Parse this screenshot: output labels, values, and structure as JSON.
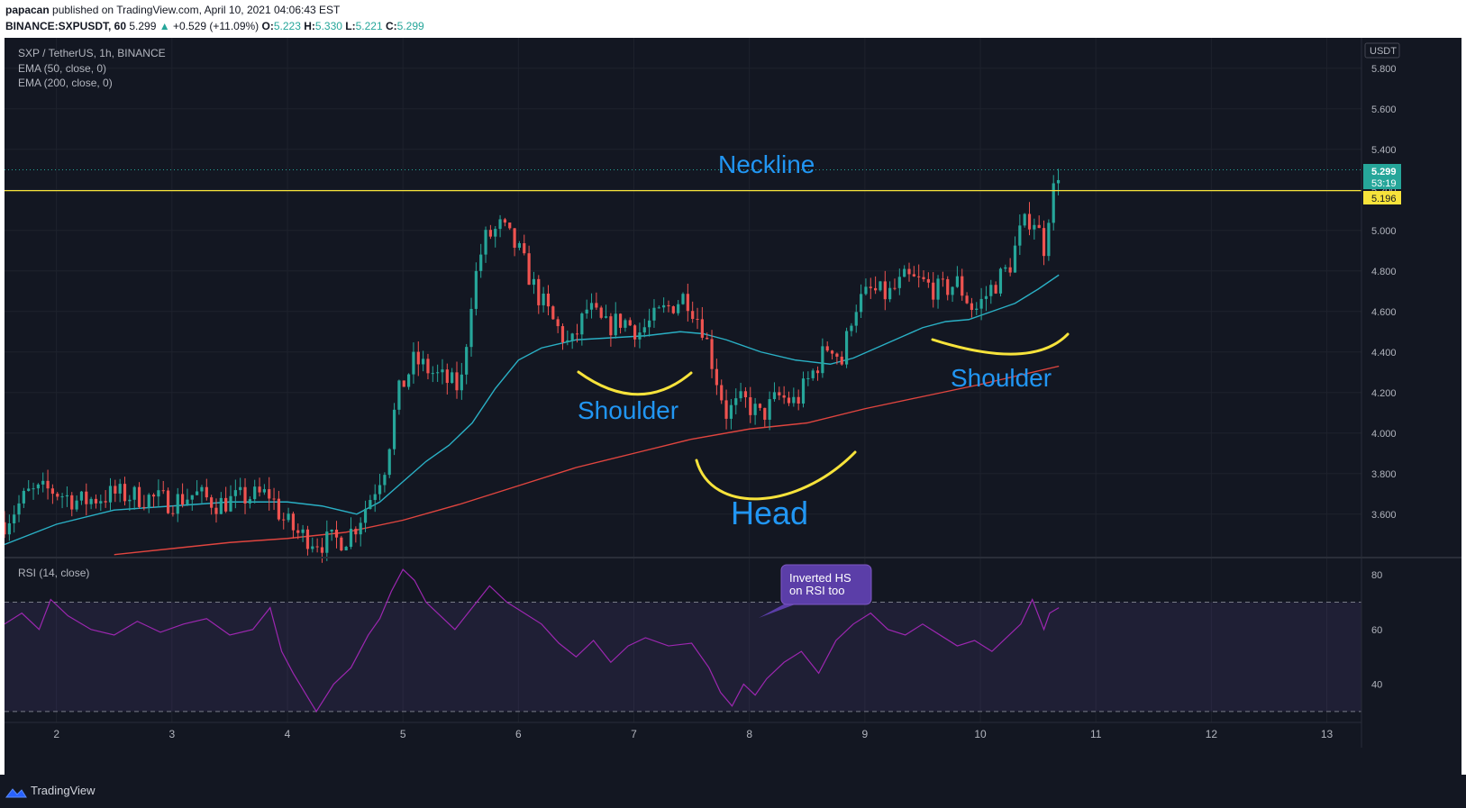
{
  "header": {
    "author": "papacan",
    "published": "published on TradingView.com, April 10, 2021 04:06:43 EST",
    "symbol": "BINANCE:SXPUSDT, 60",
    "last": "5.299",
    "change": "+0.529 (+11.09%)",
    "o_label": "O:",
    "o": "5.223",
    "h_label": "H:",
    "h": "5.330",
    "l_label": "L:",
    "l": "5.221",
    "c_label": "C:",
    "c": "5.299"
  },
  "legend": {
    "title": "SXP / TetherUS, 1h, BINANCE",
    "ema50": "EMA (50, close, 0)",
    "ema200": "EMA (200, close, 0)",
    "rsi": "RSI (14, close)"
  },
  "axis": {
    "currency": "USDT"
  },
  "price_tags": {
    "last": "5.299",
    "countdown": "53:19",
    "line": "5.196"
  },
  "annotations": {
    "neckline": "Neckline",
    "left_shoulder": "Shoulder",
    "head": "Head",
    "right_shoulder": "Shoulder",
    "rsi_note_line1": "Inverted HS",
    "rsi_note_line2": "on RSI too"
  },
  "footer": {
    "brand": "TradingView"
  },
  "colors": {
    "background": "#131722",
    "grid": "#1e222d",
    "up": "#26a69a",
    "down": "#ef5350",
    "ema50": "#2ab0c5",
    "ema200": "#e0453f",
    "neckline": "#f7e33b",
    "annotation": "#2196f3",
    "rsi": "#9c27b0",
    "rsi_band": "#7e57c2"
  },
  "chart_data": [
    {
      "type": "candlestick",
      "title": "SXP / TetherUS, 1h, BINANCE",
      "x_ticks": [
        "2",
        "3",
        "4",
        "5",
        "6",
        "7",
        "8",
        "9",
        "10",
        "11",
        "12",
        "13"
      ],
      "x_range": [
        1.55,
        13.3
      ],
      "y_ticks": [
        3.6,
        3.8,
        4.0,
        4.2,
        4.4,
        4.6,
        4.8,
        5.0,
        5.2,
        5.4,
        5.6,
        5.8
      ],
      "y_tick_labels": [
        "3.600",
        "3.800",
        "4.000",
        "4.200",
        "4.400",
        "4.600",
        "4.800",
        "5.000",
        "5.200",
        "5.400",
        "5.600",
        "5.800"
      ],
      "ylim": [
        3.39,
        5.95
      ],
      "neckline": 5.196,
      "last_price": 5.299,
      "price_path": [
        [
          1.55,
          3.56
        ],
        [
          1.75,
          3.7
        ],
        [
          1.95,
          3.72
        ],
        [
          2.2,
          3.66
        ],
        [
          2.5,
          3.7
        ],
        [
          2.8,
          3.68
        ],
        [
          3.0,
          3.66
        ],
        [
          3.2,
          3.7
        ],
        [
          3.4,
          3.65
        ],
        [
          3.6,
          3.68
        ],
        [
          3.85,
          3.7
        ],
        [
          3.95,
          3.58
        ],
        [
          4.1,
          3.5
        ],
        [
          4.3,
          3.46
        ],
        [
          4.5,
          3.48
        ],
        [
          4.6,
          3.55
        ],
        [
          4.75,
          3.72
        ],
        [
          4.85,
          3.85
        ],
        [
          4.95,
          4.18
        ],
        [
          5.1,
          4.36
        ],
        [
          5.3,
          4.28
        ],
        [
          5.5,
          4.22
        ],
        [
          5.6,
          4.7
        ],
        [
          5.7,
          4.95
        ],
        [
          5.85,
          5.02
        ],
        [
          6.0,
          4.9
        ],
        [
          6.15,
          4.7
        ],
        [
          6.3,
          4.55
        ],
        [
          6.45,
          4.42
        ],
        [
          6.6,
          4.62
        ],
        [
          6.75,
          4.52
        ],
        [
          6.9,
          4.56
        ],
        [
          7.05,
          4.5
        ],
        [
          7.25,
          4.6
        ],
        [
          7.45,
          4.68
        ],
        [
          7.6,
          4.52
        ],
        [
          7.7,
          4.3
        ],
        [
          7.8,
          4.1
        ],
        [
          7.95,
          4.16
        ],
        [
          8.1,
          4.08
        ],
        [
          8.25,
          4.18
        ],
        [
          8.4,
          4.15
        ],
        [
          8.55,
          4.3
        ],
        [
          8.7,
          4.45
        ],
        [
          8.8,
          4.35
        ],
        [
          8.9,
          4.62
        ],
        [
          9.05,
          4.7
        ],
        [
          9.2,
          4.68
        ],
        [
          9.35,
          4.76
        ],
        [
          9.5,
          4.74
        ],
        [
          9.65,
          4.7
        ],
        [
          9.8,
          4.74
        ],
        [
          9.95,
          4.6
        ],
        [
          10.1,
          4.72
        ],
        [
          10.25,
          4.82
        ],
        [
          10.35,
          5.0
        ],
        [
          10.45,
          5.08
        ],
        [
          10.55,
          4.92
        ],
        [
          10.6,
          5.12
        ],
        [
          10.65,
          5.24
        ],
        [
          10.68,
          5.299
        ]
      ]
    },
    {
      "type": "line",
      "series": [
        {
          "name": "EMA (50, close, 0)",
          "x": [
            1.55,
            2.0,
            2.5,
            3.0,
            3.5,
            4.0,
            4.3,
            4.6,
            4.8,
            5.0,
            5.2,
            5.4,
            5.6,
            5.8,
            6.0,
            6.2,
            6.5,
            6.8,
            7.1,
            7.4,
            7.6,
            7.8,
            8.1,
            8.4,
            8.7,
            8.9,
            9.1,
            9.3,
            9.5,
            9.7,
            9.9,
            10.1,
            10.3,
            10.5,
            10.68
          ],
          "y": [
            3.45,
            3.55,
            3.62,
            3.64,
            3.66,
            3.66,
            3.64,
            3.6,
            3.66,
            3.76,
            3.86,
            3.94,
            4.05,
            4.22,
            4.36,
            4.42,
            4.46,
            4.47,
            4.48,
            4.5,
            4.49,
            4.46,
            4.4,
            4.36,
            4.34,
            4.37,
            4.42,
            4.47,
            4.52,
            4.55,
            4.56,
            4.6,
            4.64,
            4.71,
            4.78
          ]
        },
        {
          "name": "EMA (200, close, 0)",
          "x": [
            2.5,
            3.0,
            3.5,
            4.0,
            4.5,
            5.0,
            5.5,
            6.0,
            6.5,
            7.0,
            7.5,
            8.0,
            8.5,
            9.0,
            9.5,
            10.0,
            10.3,
            10.68
          ],
          "y": [
            3.4,
            3.43,
            3.46,
            3.48,
            3.51,
            3.57,
            3.65,
            3.74,
            3.83,
            3.9,
            3.97,
            4.02,
            4.05,
            4.12,
            4.18,
            4.24,
            4.28,
            4.33
          ]
        }
      ]
    },
    {
      "type": "line",
      "title": "RSI (14, close)",
      "series": [
        {
          "name": "RSI (14, close)",
          "x": [
            1.55,
            1.7,
            1.85,
            1.95,
            2.1,
            2.3,
            2.5,
            2.7,
            2.9,
            3.1,
            3.3,
            3.5,
            3.7,
            3.85,
            3.95,
            4.05,
            4.15,
            4.25,
            4.4,
            4.55,
            4.7,
            4.8,
            4.9,
            5.0,
            5.1,
            5.2,
            5.3,
            5.45,
            5.6,
            5.75,
            5.9,
            6.05,
            6.2,
            6.35,
            6.5,
            6.65,
            6.8,
            6.95,
            7.1,
            7.3,
            7.5,
            7.65,
            7.75,
            7.85,
            7.95,
            8.05,
            8.15,
            8.3,
            8.45,
            8.6,
            8.75,
            8.9,
            9.05,
            9.2,
            9.35,
            9.5,
            9.65,
            9.8,
            9.95,
            10.1,
            10.25,
            10.35,
            10.45,
            10.55,
            10.6,
            10.68
          ],
          "y": [
            62,
            66,
            60,
            71,
            65,
            60,
            58,
            63,
            59,
            62,
            64,
            58,
            60,
            68,
            52,
            44,
            37,
            30,
            40,
            46,
            58,
            64,
            74,
            82,
            78,
            70,
            66,
            60,
            68,
            76,
            70,
            66,
            62,
            55,
            50,
            56,
            48,
            54,
            57,
            54,
            55,
            46,
            37,
            32,
            40,
            36,
            42,
            48,
            52,
            44,
            56,
            62,
            66,
            60,
            58,
            62,
            58,
            54,
            56,
            52,
            58,
            62,
            71,
            60,
            66,
            68
          ]
        }
      ],
      "y_ticks": [
        40,
        60,
        80
      ],
      "ylim": [
        26,
        86
      ],
      "bands": [
        30,
        70
      ]
    }
  ]
}
